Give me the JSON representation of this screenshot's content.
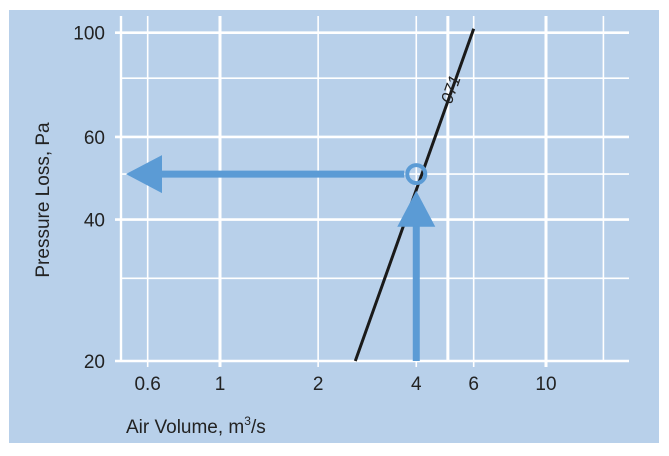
{
  "colors": {
    "background": "#b8d0ea",
    "grid": "#ffffff",
    "curve": "#1a1a1a",
    "arrow": "#5b9bd5",
    "text": "#222222"
  },
  "chart_data": {
    "type": "line",
    "title": "",
    "xlabel": "Air Volume, m³/s",
    "ylabel": "Pressure Loss, Pa",
    "xscale": "log",
    "yscale": "log",
    "xlim": [
      0.45,
      20
    ],
    "ylim": [
      20,
      110
    ],
    "xticks": [
      {
        "value": 0.6,
        "label": "0.6"
      },
      {
        "value": 1,
        "label": "1"
      },
      {
        "value": 2,
        "label": "2"
      },
      {
        "value": 4,
        "label": "4"
      },
      {
        "value": 6,
        "label": "6"
      },
      {
        "value": 10,
        "label": "10"
      }
    ],
    "yticks": [
      {
        "value": 20,
        "label": "20"
      },
      {
        "value": 40,
        "label": "40"
      },
      {
        "value": 60,
        "label": "60"
      },
      {
        "value": 100,
        "label": "100"
      }
    ],
    "xgrid": [
      0.6,
      1,
      2,
      4,
      5,
      6,
      10,
      15
    ],
    "ygrid": [
      20,
      30,
      40,
      50,
      60,
      80,
      100
    ],
    "grid": true,
    "series": [
      {
        "name": "071",
        "x": [
          2.6,
          6.0
        ],
        "y": [
          20,
          102
        ]
      }
    ],
    "annotations": {
      "operating_point": {
        "x": 4,
        "y": 50
      },
      "arrow_up": {
        "x": 4,
        "from_y": 20,
        "to_y": 47
      },
      "arrow_left": {
        "y": 50,
        "from_x": 4,
        "to_x": 0.5
      }
    }
  }
}
